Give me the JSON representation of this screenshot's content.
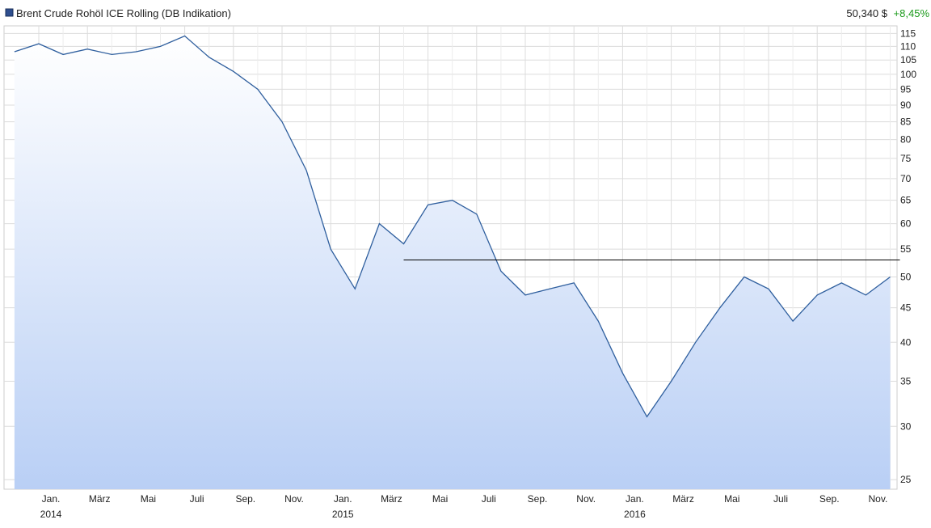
{
  "chart_data": {
    "type": "line",
    "title": "Brent Crude Rohöl ICE Rolling (DB Indikation)",
    "last_price": "50,340 $",
    "change": "+8,45%",
    "log_scale": true,
    "grid": true,
    "x": [
      "2013-12",
      "2014-01",
      "2014-02",
      "2014-03",
      "2014-04",
      "2014-05",
      "2014-06",
      "2014-07",
      "2014-08",
      "2014-09",
      "2014-10",
      "2014-11",
      "2014-12",
      "2015-01",
      "2015-02",
      "2015-03",
      "2015-04",
      "2015-05",
      "2015-06",
      "2015-07",
      "2015-08",
      "2015-09",
      "2015-10",
      "2015-11",
      "2015-12",
      "2016-01",
      "2016-02",
      "2016-03",
      "2016-04",
      "2016-05",
      "2016-06",
      "2016-07",
      "2016-08",
      "2016-09",
      "2016-10",
      "2016-11",
      "2016-12"
    ],
    "series": [
      {
        "name": "Brent Crude Rohöl ICE Rolling (DB Indikation)",
        "color": "#2f5f9e",
        "values": [
          108,
          111,
          107,
          109,
          107,
          108,
          110,
          114,
          106,
          101,
          95,
          85,
          72,
          55,
          48,
          60,
          56,
          64,
          65,
          62,
          51,
          47,
          48,
          49,
          43,
          36,
          31,
          35,
          40,
          45,
          50,
          48,
          43,
          47,
          49,
          47,
          50
        ]
      }
    ],
    "hline": {
      "value": 53,
      "from": "2015-04",
      "to": "2016-12"
    },
    "ylim": [
      24.2,
      118
    ],
    "yticks": [
      25,
      30,
      35,
      40,
      45,
      50,
      55,
      60,
      65,
      70,
      75,
      80,
      85,
      90,
      95,
      100,
      105,
      110,
      115
    ],
    "xticks": [
      {
        "value": "2014-01",
        "label": "Jan."
      },
      {
        "value": "2014-03",
        "label": "März"
      },
      {
        "value": "2014-05",
        "label": "Mai"
      },
      {
        "value": "2014-07",
        "label": "Juli"
      },
      {
        "value": "2014-09",
        "label": "Sep."
      },
      {
        "value": "2014-11",
        "label": "Nov."
      },
      {
        "value": "2015-01",
        "label": "Jan."
      },
      {
        "value": "2015-03",
        "label": "März"
      },
      {
        "value": "2015-05",
        "label": "Mai"
      },
      {
        "value": "2015-07",
        "label": "Juli"
      },
      {
        "value": "2015-09",
        "label": "Sep."
      },
      {
        "value": "2015-11",
        "label": "Nov."
      },
      {
        "value": "2016-01",
        "label": "Jan."
      },
      {
        "value": "2016-03",
        "label": "März"
      },
      {
        "value": "2016-05",
        "label": "Mai"
      },
      {
        "value": "2016-07",
        "label": "Juli"
      },
      {
        "value": "2016-09",
        "label": "Sep."
      },
      {
        "value": "2016-11",
        "label": "Nov."
      }
    ],
    "year_labels": [
      {
        "value": "2014-01",
        "label": "2014"
      },
      {
        "value": "2015-01",
        "label": "2015"
      },
      {
        "value": "2016-01",
        "label": "2016"
      }
    ]
  }
}
